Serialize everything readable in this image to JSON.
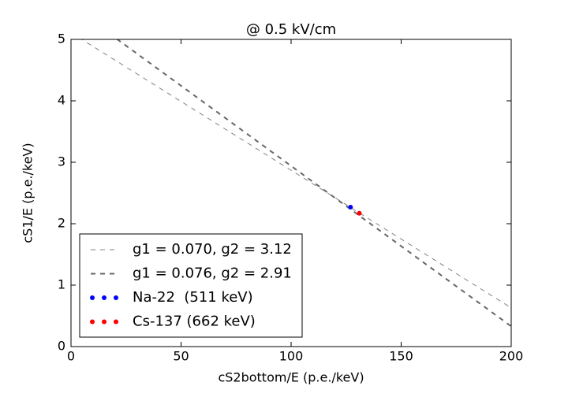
{
  "chart_data": {
    "type": "line",
    "title": "@ 0.5 kV/cm",
    "x_label": "cS2bottom/E (p.e./keV)",
    "y_label": "cS1/E (p.e./keV)",
    "xlim": [
      0,
      200
    ],
    "ylim": [
      0,
      5
    ],
    "xticks": [
      0,
      50,
      100,
      150,
      200
    ],
    "yticks": [
      0,
      1,
      2,
      3,
      4,
      5
    ],
    "legend": "lower left",
    "series": [
      {
        "name": "g1 = 0.070, g2 = 3.12",
        "color": "#808080",
        "style": "dashed",
        "linewidth": 1,
        "x": [
          0,
          200
        ],
        "values": [
          5.11,
          0.63
        ]
      },
      {
        "name": "g1 = 0.076, g2 = 2.91",
        "color": "#666666",
        "style": "dashed",
        "linewidth": 2,
        "x": [
          0,
          200
        ],
        "values": [
          5.55,
          0.33
        ]
      },
      {
        "name": "Na-22  (511 keV)",
        "color": "#0000ff",
        "style": "scatter",
        "x": [
          127
        ],
        "values": [
          2.27
        ]
      },
      {
        "name": "Cs-137 (662 keV)",
        "color": "#ff0000",
        "style": "scatter",
        "x": [
          131
        ],
        "values": [
          2.17
        ]
      }
    ]
  }
}
